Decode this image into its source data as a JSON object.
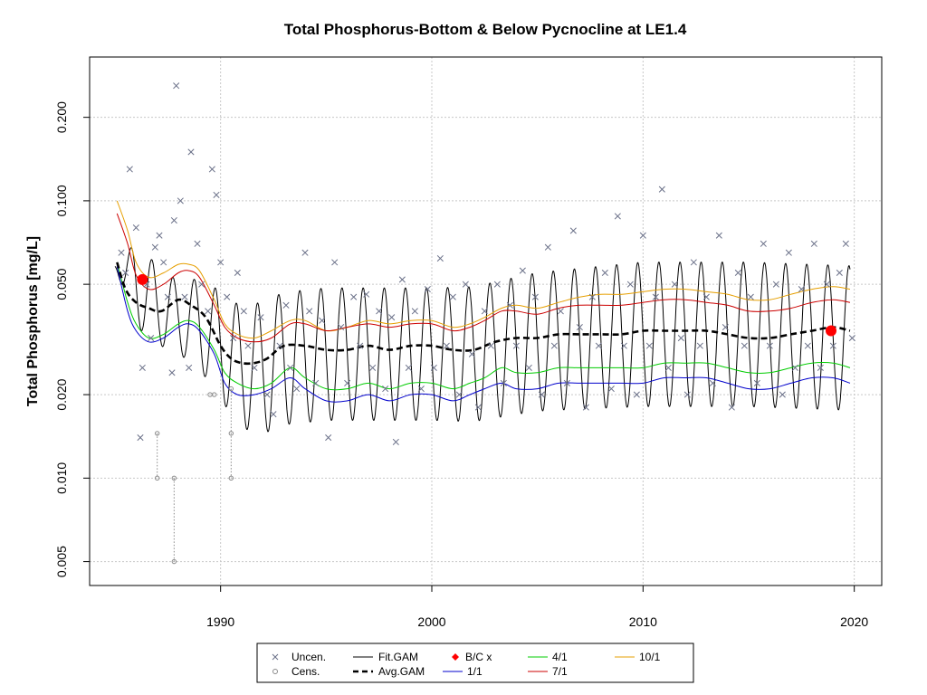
{
  "chart_data": {
    "type": "scatter",
    "title": "Total Phosphorus-Bottom & Below Pycnocline at LE1.4",
    "ylabel": "Total Phosphorus [mg/L]",
    "xlabel": "",
    "xlim": [
      1983.8,
      2021.3
    ],
    "ylim": [
      0.0041,
      0.33
    ],
    "y_scale": "log",
    "grid": true,
    "x_ticks": [
      1990,
      2000,
      2010,
      2020
    ],
    "x_tick_labels": [
      "1990",
      "2000",
      "2010",
      "2020"
    ],
    "y_ticks": [
      0.005,
      0.01,
      0.02,
      0.05,
      0.1,
      0.2
    ],
    "y_tick_labels": [
      "0.005",
      "0.010",
      "0.020",
      "0.050",
      "0.100",
      "0.200"
    ],
    "legend": {
      "position": "bottom",
      "entries": [
        "Uncen.",
        "Cens.",
        "Fit.GAM",
        "Avg.GAM",
        "B/C x",
        "1/1",
        "4/1",
        "7/1",
        "10/1"
      ]
    },
    "colors": {
      "uncen": "#6a7088",
      "cens": "#8a8a8a",
      "fit_gam": "#000000",
      "avg_gam": "#000000",
      "bc": "#ff0000",
      "s_1_1": "#0000cc",
      "s_4_1": "#00cc00",
      "s_7_1": "#cc0000",
      "s_10_1": "#e69f00",
      "grid": "#c8c8c8"
    },
    "uncensored_points": [
      [
        1985.3,
        0.065
      ],
      [
        1985.5,
        0.055
      ],
      [
        1985.7,
        0.13
      ],
      [
        1986.0,
        0.08
      ],
      [
        1986.2,
        0.014
      ],
      [
        1986.3,
        0.025
      ],
      [
        1986.5,
        0.05
      ],
      [
        1986.7,
        0.032
      ],
      [
        1986.9,
        0.068
      ],
      [
        1987.1,
        0.075
      ],
      [
        1987.3,
        0.06
      ],
      [
        1987.5,
        0.045
      ],
      [
        1987.7,
        0.024
      ],
      [
        1987.8,
        0.085
      ],
      [
        1987.9,
        0.26
      ],
      [
        1988.1,
        0.1
      ],
      [
        1988.3,
        0.045
      ],
      [
        1988.5,
        0.025
      ],
      [
        1988.6,
        0.15
      ],
      [
        1988.9,
        0.07
      ],
      [
        1989.1,
        0.05
      ],
      [
        1989.4,
        0.04
      ],
      [
        1989.6,
        0.13
      ],
      [
        1989.8,
        0.105
      ],
      [
        1990.0,
        0.06
      ],
      [
        1990.3,
        0.045
      ],
      [
        1990.6,
        0.032
      ],
      [
        1990.8,
        0.055
      ],
      [
        1991.1,
        0.04
      ],
      [
        1991.3,
        0.03
      ],
      [
        1991.6,
        0.025
      ],
      [
        1991.9,
        0.038
      ],
      [
        1992.2,
        0.02
      ],
      [
        1992.5,
        0.017
      ],
      [
        1992.8,
        0.03
      ],
      [
        1993.1,
        0.042
      ],
      [
        1993.3,
        0.025
      ],
      [
        1993.6,
        0.021
      ],
      [
        1994.0,
        0.065
      ],
      [
        1994.2,
        0.04
      ],
      [
        1994.5,
        0.022
      ],
      [
        1994.8,
        0.037
      ],
      [
        1995.1,
        0.014
      ],
      [
        1995.4,
        0.06
      ],
      [
        1995.7,
        0.035
      ],
      [
        1996.0,
        0.022
      ],
      [
        1996.3,
        0.045
      ],
      [
        1996.6,
        0.03
      ],
      [
        1996.9,
        0.046
      ],
      [
        1997.2,
        0.025
      ],
      [
        1997.5,
        0.04
      ],
      [
        1997.8,
        0.021
      ],
      [
        1998.1,
        0.038
      ],
      [
        1998.3,
        0.0135
      ],
      [
        1998.6,
        0.052
      ],
      [
        1998.9,
        0.025
      ],
      [
        1999.2,
        0.04
      ],
      [
        1999.5,
        0.021
      ],
      [
        1999.8,
        0.048
      ],
      [
        2000.1,
        0.025
      ],
      [
        2000.4,
        0.062
      ],
      [
        2000.7,
        0.03
      ],
      [
        2001.0,
        0.045
      ],
      [
        2001.3,
        0.02
      ],
      [
        2001.6,
        0.05
      ],
      [
        2001.9,
        0.028
      ],
      [
        2002.2,
        0.018
      ],
      [
        2002.5,
        0.04
      ],
      [
        2002.8,
        0.03
      ],
      [
        2003.1,
        0.05
      ],
      [
        2003.4,
        0.022
      ],
      [
        2003.7,
        0.042
      ],
      [
        2004.0,
        0.03
      ],
      [
        2004.3,
        0.056
      ],
      [
        2004.6,
        0.025
      ],
      [
        2004.9,
        0.045
      ],
      [
        2005.2,
        0.02
      ],
      [
        2005.5,
        0.068
      ],
      [
        2005.8,
        0.03
      ],
      [
        2006.1,
        0.04
      ],
      [
        2006.4,
        0.022
      ],
      [
        2006.7,
        0.078
      ],
      [
        2007.0,
        0.035
      ],
      [
        2007.3,
        0.018
      ],
      [
        2007.6,
        0.045
      ],
      [
        2007.9,
        0.03
      ],
      [
        2008.2,
        0.055
      ],
      [
        2008.5,
        0.021
      ],
      [
        2008.8,
        0.088
      ],
      [
        2009.1,
        0.03
      ],
      [
        2009.4,
        0.05
      ],
      [
        2009.7,
        0.02
      ],
      [
        2010.0,
        0.075
      ],
      [
        2010.3,
        0.03
      ],
      [
        2010.6,
        0.045
      ],
      [
        2010.9,
        0.11
      ],
      [
        2011.2,
        0.025
      ],
      [
        2011.5,
        0.05
      ],
      [
        2011.8,
        0.032
      ],
      [
        2012.1,
        0.02
      ],
      [
        2012.4,
        0.06
      ],
      [
        2012.7,
        0.03
      ],
      [
        2013.0,
        0.045
      ],
      [
        2013.3,
        0.022
      ],
      [
        2013.6,
        0.075
      ],
      [
        2013.9,
        0.035
      ],
      [
        2014.2,
        0.018
      ],
      [
        2014.5,
        0.055
      ],
      [
        2014.8,
        0.03
      ],
      [
        2015.1,
        0.045
      ],
      [
        2015.4,
        0.022
      ],
      [
        2015.7,
        0.07
      ],
      [
        2016.0,
        0.03
      ],
      [
        2016.3,
        0.05
      ],
      [
        2016.6,
        0.02
      ],
      [
        2016.9,
        0.065
      ],
      [
        2017.2,
        0.025
      ],
      [
        2017.5,
        0.048
      ],
      [
        2017.8,
        0.03
      ],
      [
        2018.1,
        0.07
      ],
      [
        2018.4,
        0.025
      ],
      [
        2018.7,
        0.05
      ],
      [
        2019.0,
        0.03
      ],
      [
        2019.3,
        0.055
      ],
      [
        2019.6,
        0.07
      ],
      [
        2019.9,
        0.032
      ]
    ],
    "censored_points": [
      [
        1987.0,
        0.0145
      ],
      [
        1987.0,
        0.01
      ],
      [
        1987.8,
        0.01
      ],
      [
        1987.8,
        0.005
      ],
      [
        1989.5,
        0.02
      ],
      [
        1989.7,
        0.02
      ],
      [
        1990.5,
        0.021
      ],
      [
        1990.5,
        0.0145
      ],
      [
        1990.5,
        0.01
      ]
    ],
    "bc_points": [
      [
        1986.3,
        0.052
      ],
      [
        2018.9,
        0.034
      ]
    ],
    "fit_gam": {
      "start": 1985.0,
      "end": 2019.8,
      "peak_phase": 0.75,
      "trend": [
        [
          1985,
          0.058
        ],
        [
          1986,
          0.05
        ],
        [
          1987,
          0.042
        ],
        [
          1988,
          0.038
        ],
        [
          1989,
          0.036
        ],
        [
          1990,
          0.03
        ],
        [
          1991,
          0.025
        ],
        [
          1992,
          0.025
        ],
        [
          1993,
          0.027
        ],
        [
          1995,
          0.028
        ],
        [
          2000,
          0.028
        ],
        [
          2002,
          0.028
        ],
        [
          2005,
          0.031
        ],
        [
          2010,
          0.033
        ],
        [
          2015,
          0.033
        ],
        [
          2019.8,
          0.032
        ]
      ],
      "amplitude": [
        [
          1985,
          0.0
        ],
        [
          1986,
          0.35
        ],
        [
          1988,
          0.3
        ],
        [
          1990,
          0.45
        ],
        [
          1992,
          0.55
        ],
        [
          2000,
          0.55
        ],
        [
          2010,
          0.6
        ],
        [
          2019.8,
          0.6
        ]
      ]
    },
    "avg_gam": [
      [
        1985.1,
        0.06
      ],
      [
        1985.5,
        0.048
      ],
      [
        1986,
        0.043
      ],
      [
        1986.6,
        0.041
      ],
      [
        1987.2,
        0.04
      ],
      [
        1988,
        0.044
      ],
      [
        1988.6,
        0.042
      ],
      [
        1989.3,
        0.038
      ],
      [
        1990,
        0.03
      ],
      [
        1990.5,
        0.027
      ],
      [
        1991,
        0.026
      ],
      [
        1991.6,
        0.026
      ],
      [
        1992.2,
        0.027
      ],
      [
        1993,
        0.03
      ],
      [
        1994,
        0.03
      ],
      [
        1995,
        0.029
      ],
      [
        1996,
        0.029
      ],
      [
        1997,
        0.03
      ],
      [
        1998,
        0.029
      ],
      [
        1999,
        0.03
      ],
      [
        2000,
        0.03
      ],
      [
        2001,
        0.029
      ],
      [
        2002,
        0.029
      ],
      [
        2003,
        0.031
      ],
      [
        2004,
        0.032
      ],
      [
        2005,
        0.032
      ],
      [
        2006,
        0.033
      ],
      [
        2007,
        0.033
      ],
      [
        2008,
        0.033
      ],
      [
        2009,
        0.033
      ],
      [
        2010,
        0.034
      ],
      [
        2011,
        0.034
      ],
      [
        2012,
        0.034
      ],
      [
        2013,
        0.034
      ],
      [
        2014,
        0.033
      ],
      [
        2015,
        0.032
      ],
      [
        2016,
        0.032
      ],
      [
        2017,
        0.033
      ],
      [
        2018,
        0.034
      ],
      [
        2019,
        0.035
      ],
      [
        2019.8,
        0.034
      ]
    ],
    "ratio_1_1": [
      [
        1985.1,
        0.058
      ],
      [
        1985.6,
        0.04
      ],
      [
        1986,
        0.034
      ],
      [
        1986.6,
        0.031
      ],
      [
        1987.3,
        0.032
      ],
      [
        1988,
        0.035
      ],
      [
        1988.5,
        0.036
      ],
      [
        1989,
        0.034
      ],
      [
        1989.7,
        0.028
      ],
      [
        1990.2,
        0.022
      ],
      [
        1990.8,
        0.02
      ],
      [
        1991.6,
        0.02
      ],
      [
        1992.4,
        0.021
      ],
      [
        1993.3,
        0.023
      ],
      [
        1994,
        0.021
      ],
      [
        1995,
        0.019
      ],
      [
        1996,
        0.019
      ],
      [
        1997,
        0.02
      ],
      [
        1998,
        0.019
      ],
      [
        1999,
        0.02
      ],
      [
        2000,
        0.02
      ],
      [
        2001,
        0.019
      ],
      [
        2001.8,
        0.02
      ],
      [
        2002.5,
        0.021
      ],
      [
        2003.3,
        0.022
      ],
      [
        2004,
        0.021
      ],
      [
        2005,
        0.021
      ],
      [
        2006,
        0.022
      ],
      [
        2007,
        0.022
      ],
      [
        2008,
        0.022
      ],
      [
        2009,
        0.022
      ],
      [
        2010,
        0.022
      ],
      [
        2011,
        0.023
      ],
      [
        2012,
        0.023
      ],
      [
        2013,
        0.023
      ],
      [
        2014,
        0.022
      ],
      [
        2015,
        0.021
      ],
      [
        2016,
        0.021
      ],
      [
        2017,
        0.022
      ],
      [
        2018,
        0.023
      ],
      [
        2019,
        0.023
      ],
      [
        2019.8,
        0.022
      ]
    ],
    "ratio_4_1": [
      [
        1985.1,
        0.06
      ],
      [
        1985.6,
        0.043
      ],
      [
        1986,
        0.036
      ],
      [
        1986.6,
        0.032
      ],
      [
        1987.3,
        0.033
      ],
      [
        1988,
        0.036
      ],
      [
        1988.5,
        0.037
      ],
      [
        1989,
        0.035
      ],
      [
        1989.7,
        0.029
      ],
      [
        1990.2,
        0.024
      ],
      [
        1990.8,
        0.022
      ],
      [
        1991.6,
        0.021
      ],
      [
        1992.4,
        0.022
      ],
      [
        1993.3,
        0.025
      ],
      [
        1994,
        0.023
      ],
      [
        1995,
        0.021
      ],
      [
        1996,
        0.021
      ],
      [
        1997,
        0.022
      ],
      [
        1998,
        0.021
      ],
      [
        1999,
        0.022
      ],
      [
        2000,
        0.022
      ],
      [
        2001,
        0.021
      ],
      [
        2001.8,
        0.022
      ],
      [
        2002.5,
        0.023
      ],
      [
        2003.3,
        0.025
      ],
      [
        2004,
        0.024
      ],
      [
        2005,
        0.024
      ],
      [
        2006,
        0.025
      ],
      [
        2007,
        0.025
      ],
      [
        2008,
        0.025
      ],
      [
        2009,
        0.025
      ],
      [
        2010,
        0.025
      ],
      [
        2011,
        0.026
      ],
      [
        2012,
        0.026
      ],
      [
        2013,
        0.026
      ],
      [
        2014,
        0.025
      ],
      [
        2015,
        0.024
      ],
      [
        2016,
        0.024
      ],
      [
        2017,
        0.025
      ],
      [
        2018,
        0.026
      ],
      [
        2019,
        0.026
      ],
      [
        2019.8,
        0.025
      ]
    ],
    "ratio_7_1": [
      [
        1985.1,
        0.09
      ],
      [
        1985.6,
        0.07
      ],
      [
        1986,
        0.054
      ],
      [
        1986.6,
        0.048
      ],
      [
        1987.3,
        0.05
      ],
      [
        1988,
        0.055
      ],
      [
        1988.5,
        0.056
      ],
      [
        1989,
        0.053
      ],
      [
        1989.7,
        0.042
      ],
      [
        1990.2,
        0.035
      ],
      [
        1990.8,
        0.032
      ],
      [
        1991.6,
        0.031
      ],
      [
        1992.4,
        0.032
      ],
      [
        1993.3,
        0.036
      ],
      [
        1994,
        0.036
      ],
      [
        1995,
        0.034
      ],
      [
        1996,
        0.035
      ],
      [
        1997,
        0.036
      ],
      [
        1998,
        0.035
      ],
      [
        1999,
        0.036
      ],
      [
        2000,
        0.036
      ],
      [
        2001,
        0.034
      ],
      [
        2001.8,
        0.035
      ],
      [
        2002.5,
        0.037
      ],
      [
        2003.3,
        0.04
      ],
      [
        2004,
        0.04
      ],
      [
        2005,
        0.039
      ],
      [
        2006,
        0.041
      ],
      [
        2007,
        0.042
      ],
      [
        2008,
        0.042
      ],
      [
        2009,
        0.042
      ],
      [
        2010,
        0.043
      ],
      [
        2011,
        0.044
      ],
      [
        2012,
        0.044
      ],
      [
        2013,
        0.043
      ],
      [
        2014,
        0.042
      ],
      [
        2015,
        0.04
      ],
      [
        2016,
        0.04
      ],
      [
        2017,
        0.041
      ],
      [
        2018,
        0.043
      ],
      [
        2019,
        0.044
      ],
      [
        2019.8,
        0.043
      ]
    ],
    "ratio_10_1": [
      [
        1985.1,
        0.1
      ],
      [
        1985.6,
        0.078
      ],
      [
        1986,
        0.06
      ],
      [
        1986.6,
        0.053
      ],
      [
        1987.3,
        0.055
      ],
      [
        1988,
        0.059
      ],
      [
        1988.5,
        0.059
      ],
      [
        1989,
        0.056
      ],
      [
        1989.7,
        0.044
      ],
      [
        1990.2,
        0.036
      ],
      [
        1990.8,
        0.033
      ],
      [
        1991.6,
        0.032
      ],
      [
        1992.4,
        0.034
      ],
      [
        1993.3,
        0.037
      ],
      [
        1994,
        0.037
      ],
      [
        1995,
        0.034
      ],
      [
        1996,
        0.035
      ],
      [
        1997,
        0.037
      ],
      [
        1998,
        0.036
      ],
      [
        1999,
        0.037
      ],
      [
        2000,
        0.037
      ],
      [
        2001,
        0.035
      ],
      [
        2001.8,
        0.036
      ],
      [
        2002.5,
        0.038
      ],
      [
        2003.3,
        0.041
      ],
      [
        2004,
        0.042
      ],
      [
        2005,
        0.041
      ],
      [
        2006,
        0.043
      ],
      [
        2007,
        0.045
      ],
      [
        2008,
        0.046
      ],
      [
        2009,
        0.046
      ],
      [
        2010,
        0.047
      ],
      [
        2011,
        0.048
      ],
      [
        2012,
        0.048
      ],
      [
        2013,
        0.047
      ],
      [
        2014,
        0.046
      ],
      [
        2015,
        0.044
      ],
      [
        2016,
        0.044
      ],
      [
        2017,
        0.046
      ],
      [
        2018,
        0.048
      ],
      [
        2019,
        0.049
      ],
      [
        2019.8,
        0.048
      ]
    ]
  }
}
